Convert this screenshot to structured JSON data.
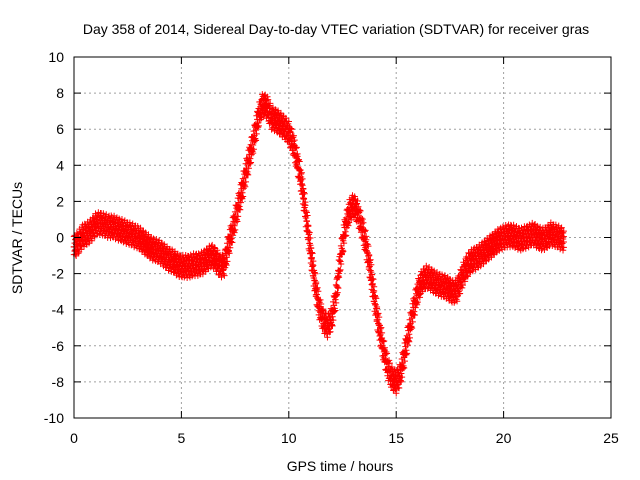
{
  "chart_data": {
    "type": "scatter",
    "title": "Day 358 of 2014, Sidereal Day-to-day VTEC variation (SDTVAR) for receiver gras",
    "xlabel": "GPS time / hours",
    "ylabel": "SDTVAR / TECUs",
    "xlim": [
      0,
      25
    ],
    "ylim": [
      -10,
      10
    ],
    "xticks": [
      0,
      5,
      10,
      15,
      20,
      25
    ],
    "yticks": [
      -10,
      -8,
      -6,
      -4,
      -2,
      0,
      2,
      4,
      6,
      8,
      10
    ],
    "grid": true,
    "marker": "+",
    "series": [
      {
        "name": "SDTVAR",
        "color": "#ff0000",
        "x": [
          0.0,
          0.2,
          0.4,
          0.6,
          0.8,
          1.0,
          1.2,
          1.4,
          1.6,
          1.8,
          2.0,
          2.2,
          2.4,
          2.6,
          2.8,
          3.0,
          3.2,
          3.4,
          3.6,
          3.8,
          4.0,
          4.2,
          4.4,
          4.6,
          4.8,
          5.0,
          5.2,
          5.4,
          5.6,
          5.8,
          6.0,
          6.2,
          6.4,
          6.6,
          6.8,
          7.0,
          7.2,
          7.4,
          7.6,
          7.8,
          8.0,
          8.2,
          8.4,
          8.6,
          8.8,
          9.0,
          9.2,
          9.4,
          9.6,
          9.8,
          10.0,
          10.2,
          10.4,
          10.6,
          10.8,
          11.0,
          11.2,
          11.4,
          11.6,
          11.8,
          12.0,
          12.2,
          12.4,
          12.6,
          12.8,
          13.0,
          13.2,
          13.4,
          13.6,
          13.8,
          14.0,
          14.2,
          14.4,
          14.6,
          14.8,
          15.0,
          15.2,
          15.4,
          15.6,
          15.8,
          16.0,
          16.2,
          16.4,
          16.6,
          16.8,
          17.0,
          17.2,
          17.4,
          17.6,
          17.8,
          18.0,
          18.2,
          18.4,
          18.6,
          18.8,
          19.0,
          19.2,
          19.4,
          19.6,
          19.8,
          20.0,
          20.2,
          20.4,
          20.6,
          20.8,
          21.0,
          21.2,
          21.4,
          21.6,
          21.8,
          22.0,
          22.2,
          22.4,
          22.6,
          22.8
        ],
        "y": [
          -0.5,
          -0.3,
          0.1,
          0.2,
          0.4,
          0.7,
          0.8,
          0.7,
          0.6,
          0.6,
          0.5,
          0.4,
          0.3,
          0.2,
          0.1,
          0.0,
          -0.2,
          -0.4,
          -0.6,
          -0.7,
          -0.8,
          -1.0,
          -1.2,
          -1.3,
          -1.5,
          -1.6,
          -1.6,
          -1.6,
          -1.5,
          -1.5,
          -1.4,
          -1.2,
          -1.0,
          -1.2,
          -1.6,
          -1.5,
          -0.4,
          0.5,
          1.5,
          2.5,
          3.6,
          4.6,
          5.6,
          6.8,
          7.4,
          7.2,
          6.6,
          6.5,
          6.3,
          6.1,
          5.8,
          5.2,
          4.2,
          3.0,
          1.2,
          -0.6,
          -2.4,
          -3.8,
          -4.6,
          -4.9,
          -4.5,
          -3.2,
          -1.2,
          0.4,
          1.4,
          1.8,
          1.4,
          0.6,
          -0.4,
          -1.8,
          -3.5,
          -5.0,
          -6.2,
          -7.2,
          -7.8,
          -8.0,
          -7.6,
          -6.4,
          -5.2,
          -4.0,
          -3.0,
          -2.4,
          -2.2,
          -2.3,
          -2.5,
          -2.6,
          -2.7,
          -2.8,
          -3.0,
          -3.0,
          -2.4,
          -1.8,
          -1.4,
          -1.2,
          -1.1,
          -0.9,
          -0.7,
          -0.5,
          -0.3,
          -0.1,
          0.0,
          0.1,
          0.1,
          0.0,
          -0.1,
          0.0,
          0.1,
          0.2,
          0.0,
          -0.1,
          0.0,
          0.2,
          0.1,
          0.0,
          -0.1
        ]
      }
    ]
  }
}
